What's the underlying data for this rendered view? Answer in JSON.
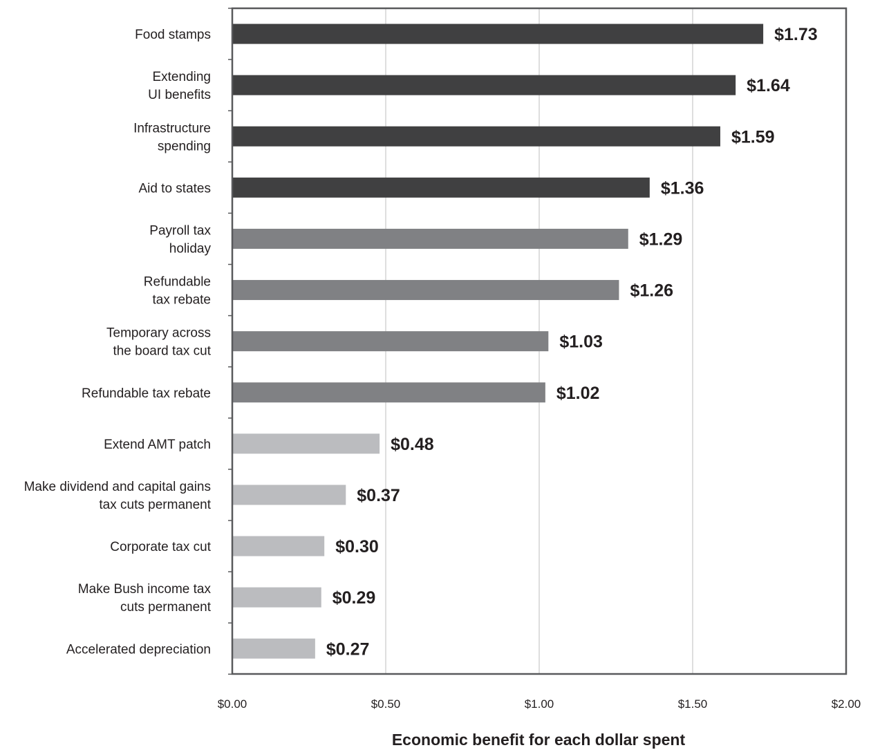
{
  "chart_data": {
    "type": "bar",
    "orientation": "horizontal",
    "categories": [
      [
        "Food stamps"
      ],
      [
        "Extending",
        "UI benefits"
      ],
      [
        "Infrastructure",
        "spending"
      ],
      [
        "Aid to states"
      ],
      [
        "Payroll tax",
        "holiday"
      ],
      [
        "Refundable",
        "tax rebate"
      ],
      [
        "Temporary across",
        "the board tax cut"
      ],
      [
        "Refundable tax rebate"
      ],
      [
        "Extend AMT patch"
      ],
      [
        "Make dividend and capital gains",
        "tax cuts permanent"
      ],
      [
        "Corporate tax cut"
      ],
      [
        "Make Bush income tax",
        "cuts permanent"
      ],
      [
        "Accelerated depreciation"
      ]
    ],
    "values": [
      1.73,
      1.64,
      1.59,
      1.36,
      1.29,
      1.26,
      1.03,
      1.02,
      0.48,
      0.37,
      0.3,
      0.29,
      0.27
    ],
    "value_labels": [
      "$1.73",
      "$1.64",
      "$1.59",
      "$1.36",
      "$1.29",
      "$1.26",
      "$1.03",
      "$1.02",
      "$0.48",
      "$0.37",
      "$0.30",
      "$0.29",
      "$0.27"
    ],
    "bar_color_groups": [
      "dark",
      "dark",
      "dark",
      "dark",
      "medium",
      "medium",
      "medium",
      "medium",
      "light",
      "light",
      "light",
      "light",
      "light"
    ],
    "colors": {
      "dark": "#404041",
      "medium": "#808184",
      "light": "#bbbcbf",
      "gridline": "#c9c9c9",
      "axis": "#58595b",
      "text": "#231f20"
    },
    "xlim": [
      0,
      2
    ],
    "xticks": [
      0,
      0.5,
      1,
      1.5,
      2
    ],
    "xtick_labels": [
      "$0.00",
      "$0.50",
      "$1.00",
      "$1.50",
      "$2.00"
    ],
    "xlabel": "Economic benefit for each dollar spent",
    "ylabel": "",
    "title": "",
    "grid": "vertical",
    "legend": "none"
  }
}
